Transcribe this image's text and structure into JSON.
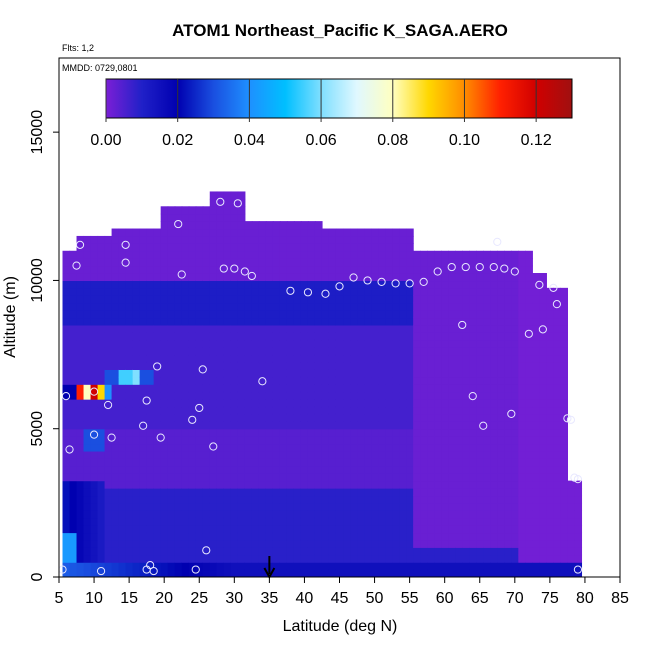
{
  "chart_data": {
    "type": "heatmap",
    "title": "ATOM1 Northeast_Pacific K_SAGA.AERO",
    "subtitle_lines": [
      "Flts: 1,2",
      "MMDD: 0729,0801"
    ],
    "xlabel": "Latitude (deg N)",
    "ylabel": "Altitude (m)",
    "xlim": [
      5,
      85
    ],
    "ylim": [
      0,
      17500
    ],
    "xticks": [
      "5",
      "10",
      "15",
      "20",
      "25",
      "30",
      "35",
      "40",
      "45",
      "50",
      "55",
      "60",
      "65",
      "70",
      "75",
      "80",
      "85"
    ],
    "yticks": [
      "0",
      "5000",
      "10000",
      "15000"
    ],
    "colorbar": {
      "range": [
        0,
        0.13
      ],
      "ticks": [
        "0.00",
        "0.02",
        "0.04",
        "0.06",
        "0.08",
        "0.10",
        "0.12"
      ],
      "tick_values": [
        0,
        0.02,
        0.04,
        0.06,
        0.08,
        0.1,
        0.12
      ],
      "colors": [
        "#7b1fd6",
        "#2020c8",
        "#0000b0",
        "#1a4fe0",
        "#1e90ff",
        "#00bfff",
        "#7fdfff",
        "#e0f8ff",
        "#ffffc0",
        "#ffd700",
        "#ff8c00",
        "#ff2000",
        "#d00000",
        "#a01010"
      ]
    },
    "marker": {
      "x": 35,
      "label": "arrow"
    },
    "grid": false,
    "regions": [
      {
        "lat": [
          6,
          79
        ],
        "alt": [
          0,
          9500
        ],
        "value": 0.008
      },
      {
        "lat": [
          6,
          12
        ],
        "alt": [
          200,
          3000
        ],
        "value": 0.03
      },
      {
        "lat": [
          5.5,
          7.5
        ],
        "alt": [
          0,
          1200
        ],
        "value": 0.04
      },
      {
        "lat": [
          12,
          19
        ],
        "alt": [
          6400,
          6900
        ],
        "value": 0.055
      },
      {
        "lat": [
          6,
          13
        ],
        "alt": [
          5900,
          6400
        ],
        "value": 0.09
      },
      {
        "lat": [
          9,
          12
        ],
        "alt": [
          4300,
          5000
        ],
        "value": 0.03
      }
    ],
    "points": [
      {
        "lat": 5.5,
        "alt": 250
      },
      {
        "lat": 6.5,
        "alt": 4300
      },
      {
        "lat": 6,
        "alt": 6100
      },
      {
        "lat": 7.5,
        "alt": 10500
      },
      {
        "lat": 8,
        "alt": 11200
      },
      {
        "lat": 10,
        "alt": 6250
      },
      {
        "lat": 10,
        "alt": 4800
      },
      {
        "lat": 11,
        "alt": 200
      },
      {
        "lat": 12,
        "alt": 5800
      },
      {
        "lat": 12.5,
        "alt": 4700
      },
      {
        "lat": 14.5,
        "alt": 10600
      },
      {
        "lat": 14.5,
        "alt": 11200
      },
      {
        "lat": 17,
        "alt": 5100
      },
      {
        "lat": 17.5,
        "alt": 5950
      },
      {
        "lat": 17.5,
        "alt": 250
      },
      {
        "lat": 18,
        "alt": 400
      },
      {
        "lat": 18.5,
        "alt": 200
      },
      {
        "lat": 19,
        "alt": 7100
      },
      {
        "lat": 19.5,
        "alt": 4700
      },
      {
        "lat": 22,
        "alt": 11900
      },
      {
        "lat": 22.5,
        "alt": 10200
      },
      {
        "lat": 24,
        "alt": 5300
      },
      {
        "lat": 24.5,
        "alt": 250
      },
      {
        "lat": 25,
        "alt": 5700
      },
      {
        "lat": 25.5,
        "alt": 7000
      },
      {
        "lat": 26,
        "alt": 900
      },
      {
        "lat": 27,
        "alt": 4400
      },
      {
        "lat": 28,
        "alt": 12650
      },
      {
        "lat": 28.5,
        "alt": 10400
      },
      {
        "lat": 30,
        "alt": 10400
      },
      {
        "lat": 30.5,
        "alt": 12600
      },
      {
        "lat": 31.5,
        "alt": 10300
      },
      {
        "lat": 32.5,
        "alt": 10150
      },
      {
        "lat": 34,
        "alt": 6600
      },
      {
        "lat": 38,
        "alt": 9650
      },
      {
        "lat": 40.5,
        "alt": 9600
      },
      {
        "lat": 43,
        "alt": 9550
      },
      {
        "lat": 45,
        "alt": 9800
      },
      {
        "lat": 47,
        "alt": 10100
      },
      {
        "lat": 49,
        "alt": 10000
      },
      {
        "lat": 51,
        "alt": 9950
      },
      {
        "lat": 53,
        "alt": 9900
      },
      {
        "lat": 55,
        "alt": 9900
      },
      {
        "lat": 57,
        "alt": 9950
      },
      {
        "lat": 59,
        "alt": 10300
      },
      {
        "lat": 61,
        "alt": 10450
      },
      {
        "lat": 62.5,
        "alt": 8500
      },
      {
        "lat": 63,
        "alt": 10450
      },
      {
        "lat": 64,
        "alt": 6100
      },
      {
        "lat": 65,
        "alt": 10450
      },
      {
        "lat": 65.5,
        "alt": 5100
      },
      {
        "lat": 67,
        "alt": 10450
      },
      {
        "lat": 67.5,
        "alt": 11300
      },
      {
        "lat": 68.5,
        "alt": 10400
      },
      {
        "lat": 69.5,
        "alt": 5500
      },
      {
        "lat": 70,
        "alt": 10300
      },
      {
        "lat": 72,
        "alt": 8200
      },
      {
        "lat": 73.5,
        "alt": 9850
      },
      {
        "lat": 74,
        "alt": 8350
      },
      {
        "lat": 75.5,
        "alt": 9750
      },
      {
        "lat": 76,
        "alt": 9200
      },
      {
        "lat": 77.5,
        "alt": 5350
      },
      {
        "lat": 78,
        "alt": 5300
      },
      {
        "lat": 78.5,
        "alt": 3350
      },
      {
        "lat": 79,
        "alt": 3300
      },
      {
        "lat": 79,
        "alt": 250
      }
    ]
  }
}
